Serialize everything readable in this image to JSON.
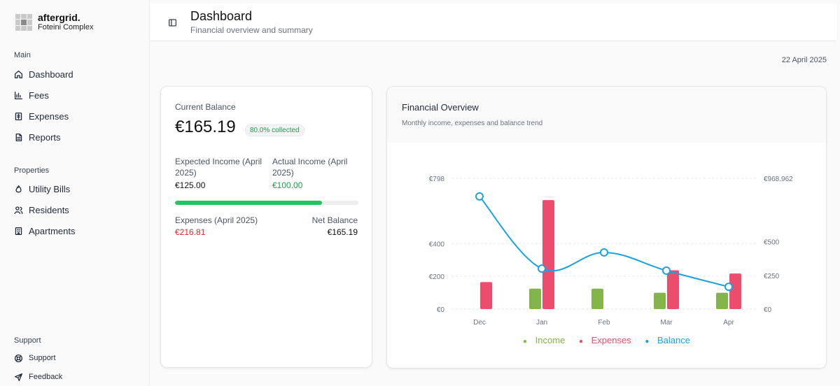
{
  "brand": {
    "name": "aftergrid.",
    "sub": "Foteini Complex"
  },
  "sidebar": {
    "main_label": "Main",
    "main_items": [
      {
        "label": "Dashboard",
        "icon": "home-icon"
      },
      {
        "label": "Fees",
        "icon": "bar-chart-icon"
      },
      {
        "label": "Expenses",
        "icon": "receipt-icon"
      },
      {
        "label": "Reports",
        "icon": "document-icon"
      }
    ],
    "properties_label": "Properties",
    "properties_items": [
      {
        "label": "Utility Bills",
        "icon": "flame-icon"
      },
      {
        "label": "Residents",
        "icon": "users-icon"
      },
      {
        "label": "Apartments",
        "icon": "building-icon"
      }
    ],
    "support_label": "Support",
    "support_items": [
      {
        "label": "Support",
        "icon": "lifebuoy-icon"
      },
      {
        "label": "Feedback",
        "icon": "send-icon"
      }
    ]
  },
  "header": {
    "title": "Dashboard",
    "subtitle": "Financial overview and summary"
  },
  "date": "22 April 2025",
  "balance": {
    "label": "Current Balance",
    "value": "€165.19",
    "badge": "80.0% collected",
    "progress_percent": 80,
    "expected_label": "Expected Income (April 2025)",
    "expected_value": "€125.00",
    "actual_label": "Actual Income (April 2025)",
    "actual_value": "€100.00",
    "expenses_label": "Expenses (April 2025)",
    "expenses_value": "€216.81",
    "net_label": "Net Balance",
    "net_value": "€165.19"
  },
  "colors": {
    "income": "#84b54a",
    "expenses": "#ec4d6c",
    "balance": "#1aa3e0",
    "green": "#16a34a",
    "red": "#dc2626"
  },
  "chart": {
    "title": "Financial Overview",
    "subtitle": "Monthly income, expenses and balance trend"
  },
  "chart_data": {
    "type": "bar",
    "categories": [
      "Dec",
      "Jan",
      "Feb",
      "Mar",
      "Apr"
    ],
    "left_ticks": [
      "€0",
      "€200",
      "€400",
      "€798"
    ],
    "right_ticks": [
      "€0",
      "€250",
      "€500",
      "€968.962"
    ],
    "series": [
      {
        "name": "Income",
        "axis": "left",
        "type": "bar",
        "values": [
          0,
          125,
          125,
          100,
          100
        ]
      },
      {
        "name": "Expenses",
        "axis": "left",
        "type": "bar",
        "values": [
          165,
          665,
          0,
          237,
          217
        ]
      },
      {
        "name": "Balance",
        "axis": "right",
        "type": "line",
        "values": [
          835,
          300,
          420,
          285,
          165
        ]
      }
    ],
    "ylim_left": [
      0,
      798
    ],
    "ylim_right": [
      0,
      968.962
    ],
    "legend_position": "bottom"
  }
}
